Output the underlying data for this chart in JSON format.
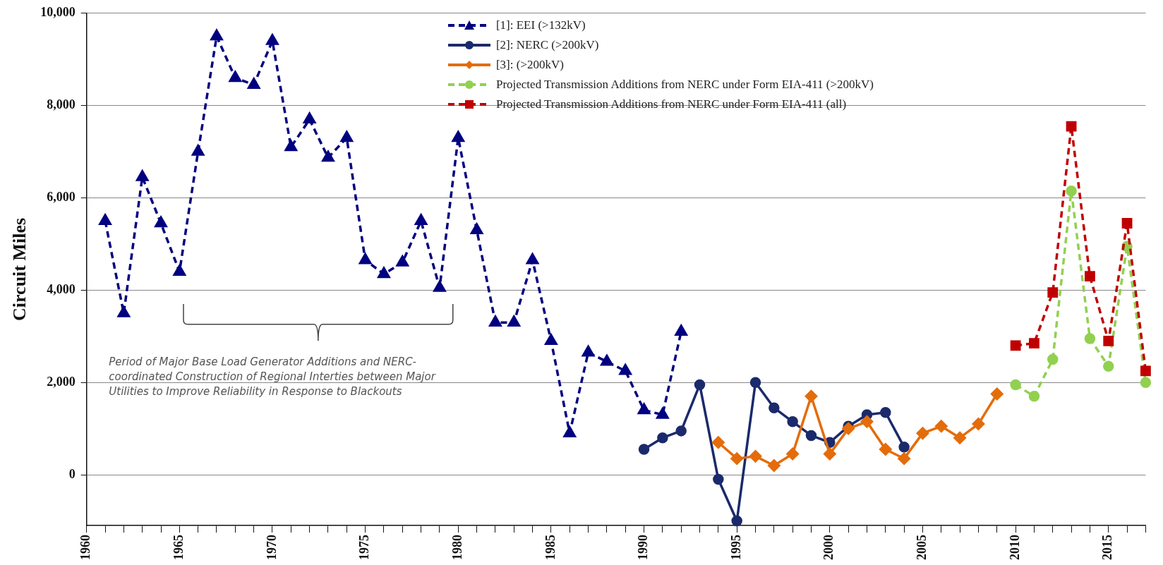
{
  "chart_data": {
    "type": "line",
    "ylabel": "Circuit Miles",
    "xlim": [
      1960,
      2017
    ],
    "xticks": [
      1960,
      {
        "value": 1961,
        "label": null
      },
      {
        "value": 1962,
        "label": null
      },
      {
        "value": 1963,
        "label": null
      },
      {
        "value": 1964,
        "label": null
      },
      1965,
      {
        "value": 1966,
        "label": null
      },
      {
        "value": 1967,
        "label": null
      },
      {
        "value": 1968,
        "label": null
      },
      {
        "value": 1969,
        "label": null
      },
      1970,
      {
        "value": 1971,
        "label": null
      },
      {
        "value": 1972,
        "label": null
      },
      {
        "value": 1973,
        "label": null
      },
      {
        "value": 1974,
        "label": null
      },
      1975,
      {
        "value": 1976,
        "label": null
      },
      {
        "value": 1977,
        "label": null
      },
      {
        "value": 1978,
        "label": null
      },
      {
        "value": 1979,
        "label": null
      },
      1980,
      {
        "value": 1981,
        "label": null
      },
      {
        "value": 1982,
        "label": null
      },
      {
        "value": 1983,
        "label": null
      },
      {
        "value": 1984,
        "label": null
      },
      1985,
      {
        "value": 1986,
        "label": null
      },
      {
        "value": 1987,
        "label": null
      },
      {
        "value": 1988,
        "label": null
      },
      {
        "value": 1989,
        "label": null
      },
      1990,
      {
        "value": 1991,
        "label": null
      },
      {
        "value": 1992,
        "label": null
      },
      {
        "value": 1993,
        "label": null
      },
      {
        "value": 1994,
        "label": null
      },
      1995,
      {
        "value": 1996,
        "label": null
      },
      {
        "value": 1997,
        "label": null
      },
      {
        "value": 1998,
        "label": null
      },
      {
        "value": 1999,
        "label": null
      },
      2000,
      {
        "value": 2001,
        "label": null
      },
      {
        "value": 2002,
        "label": null
      },
      {
        "value": 2003,
        "label": null
      },
      {
        "value": 2004,
        "label": null
      },
      2005,
      {
        "value": 2006,
        "label": null
      },
      {
        "value": 2007,
        "label": null
      },
      {
        "value": 2008,
        "label": null
      },
      {
        "value": 2009,
        "label": null
      },
      2010,
      {
        "value": 2011,
        "label": null
      },
      {
        "value": 2012,
        "label": null
      },
      {
        "value": 2013,
        "label": null
      },
      {
        "value": 2014,
        "label": null
      },
      2015,
      {
        "value": 2016,
        "label": null
      },
      {
        "value": 2017,
        "label": null
      }
    ],
    "ylim": [
      -1100,
      10000
    ],
    "yticks": [
      0,
      {
        "value": 2000,
        "label": "2,000"
      },
      {
        "value": 4000,
        "label": "4,000"
      },
      {
        "value": 6000,
        "label": "6,000"
      },
      {
        "value": 8000,
        "label": "8,000"
      },
      {
        "value": 10000,
        "label": "10,000"
      }
    ],
    "grid": "y",
    "legend": "top",
    "annotations": [
      "Period of Major Base Load Generator Additions and NERC-coordinated Construction of Regional Interties between Major Utilities to Improve Reliability in Response to Blackouts"
    ],
    "series": [
      {
        "name": "[1]: EEI (>132kV)",
        "color": "#000080",
        "marker": "triangle",
        "line_style": "dashed",
        "x": [
          1961,
          1962,
          1963,
          1964,
          1965,
          1966,
          1967,
          1968,
          1969,
          1970,
          1971,
          1972,
          1973,
          1974,
          1975,
          1976,
          1977,
          1978,
          1979,
          1980,
          1981,
          1982,
          1983,
          1984,
          1985,
          1986,
          1987,
          1988,
          1989,
          1990,
          1991,
          1992
        ],
        "values": [
          5500,
          3500,
          6450,
          5450,
          4400,
          7000,
          9500,
          8600,
          8450,
          9400,
          7100,
          7700,
          6870,
          7300,
          4650,
          4350,
          4600,
          5500,
          4050,
          7300,
          5300,
          3300,
          3300,
          4650,
          2900,
          900,
          2650,
          2450,
          2250,
          1400,
          1300,
          3100
        ]
      },
      {
        "name": "[2]: NERC (>200kV)",
        "color": "#1b2a6b",
        "marker": "circle",
        "line_style": "solid",
        "x": [
          1990,
          1991,
          1992,
          1993,
          1994,
          1995,
          1996,
          1997,
          1998,
          1999,
          2000,
          2001,
          2002,
          2003,
          2004
        ],
        "values": [
          550,
          800,
          950,
          1950,
          -100,
          -1000,
          2000,
          1450,
          1150,
          850,
          700,
          1050,
          1300,
          1350,
          600
        ]
      },
      {
        "name": "[3]: (>200kV)",
        "color": "#e46c0a",
        "marker": "diamond",
        "line_style": "solid",
        "x": [
          1994,
          1995,
          1996,
          1997,
          1998,
          1999,
          2000,
          2001,
          2002,
          2003,
          2004,
          2005,
          2006,
          2007,
          2008,
          2009
        ],
        "values": [
          700,
          350,
          400,
          200,
          450,
          1700,
          450,
          1000,
          1150,
          550,
          350,
          900,
          1050,
          800,
          1100,
          1750
        ]
      },
      {
        "name": "Projected Transmission Additions from NERC under Form EIA-411 (>200kV)",
        "color": "#92d050",
        "marker": "circle",
        "line_style": "dashed",
        "x": [
          2010,
          2011,
          2012,
          2013,
          2014,
          2015,
          2016,
          2017
        ],
        "values": [
          1950,
          1700,
          2500,
          6150,
          2950,
          2350,
          4950,
          2000
        ]
      },
      {
        "name": "Projected Transmission Additions from NERC under Form EIA-411 (all)",
        "color": "#c00000",
        "marker": "square",
        "line_style": "dashed",
        "x": [
          2010,
          2011,
          2012,
          2013,
          2014,
          2015,
          2016,
          2017
        ],
        "values": [
          2800,
          2850,
          3950,
          7550,
          4300,
          2900,
          5450,
          2250
        ]
      }
    ]
  }
}
